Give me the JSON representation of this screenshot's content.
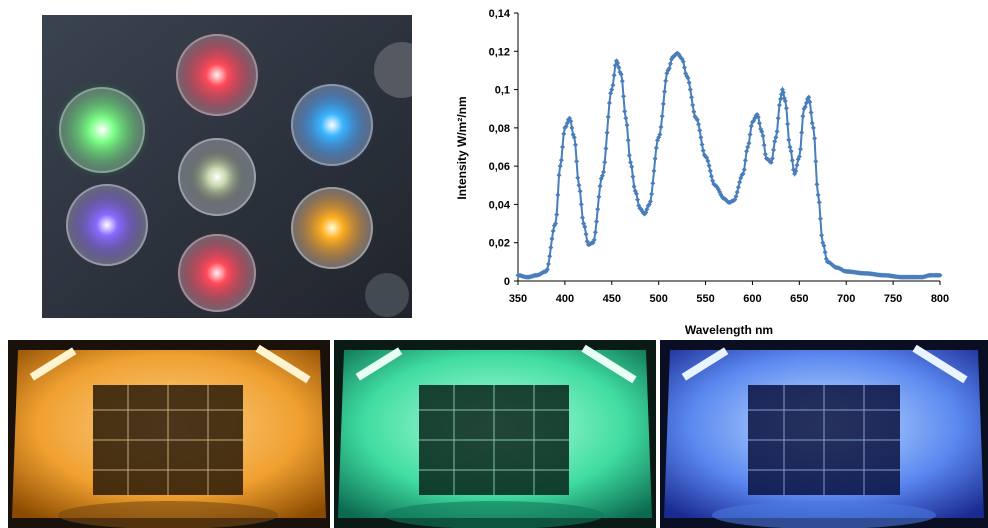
{
  "chart_data": {
    "type": "line",
    "xlabel": "Wavelength nm",
    "ylabel": "Intensity W/m²/nm",
    "xlim": [
      350,
      800
    ],
    "ylim": [
      0,
      0.14
    ],
    "x_ticks": [
      "350",
      "400",
      "450",
      "500",
      "550",
      "600",
      "650",
      "700",
      "750",
      "800"
    ],
    "y_ticks": [
      "0",
      "0,02",
      "0,04",
      "0,06",
      "0,08",
      "0,1",
      "0,12",
      "0,14"
    ],
    "grid": false,
    "marker": "diamond",
    "series": [
      {
        "color": "#4a7ebb",
        "x": [
          350,
          360,
          370,
          380,
          390,
          395,
          400,
          405,
          410,
          415,
          420,
          425,
          430,
          440,
          450,
          455,
          460,
          465,
          470,
          475,
          480,
          485,
          490,
          500,
          510,
          515,
          520,
          525,
          530,
          540,
          550,
          560,
          570,
          575,
          580,
          590,
          595,
          600,
          605,
          610,
          615,
          620,
          625,
          630,
          632,
          635,
          640,
          645,
          650,
          655,
          660,
          665,
          670,
          675,
          680,
          690,
          700,
          720,
          740,
          760,
          780,
          790,
          800
        ],
        "y": [
          0.003,
          0.002,
          0.003,
          0.005,
          0.03,
          0.06,
          0.08,
          0.085,
          0.075,
          0.05,
          0.03,
          0.019,
          0.02,
          0.055,
          0.1,
          0.115,
          0.108,
          0.085,
          0.062,
          0.047,
          0.038,
          0.035,
          0.04,
          0.075,
          0.11,
          0.117,
          0.119,
          0.116,
          0.107,
          0.085,
          0.065,
          0.05,
          0.043,
          0.041,
          0.042,
          0.056,
          0.07,
          0.083,
          0.087,
          0.078,
          0.064,
          0.062,
          0.075,
          0.095,
          0.1,
          0.094,
          0.07,
          0.056,
          0.065,
          0.09,
          0.096,
          0.08,
          0.045,
          0.02,
          0.01,
          0.007,
          0.005,
          0.004,
          0.003,
          0.002,
          0.002,
          0.003,
          0.003
        ]
      }
    ]
  },
  "colors": {
    "series": "#4a7ebb",
    "axis": "#000000"
  }
}
